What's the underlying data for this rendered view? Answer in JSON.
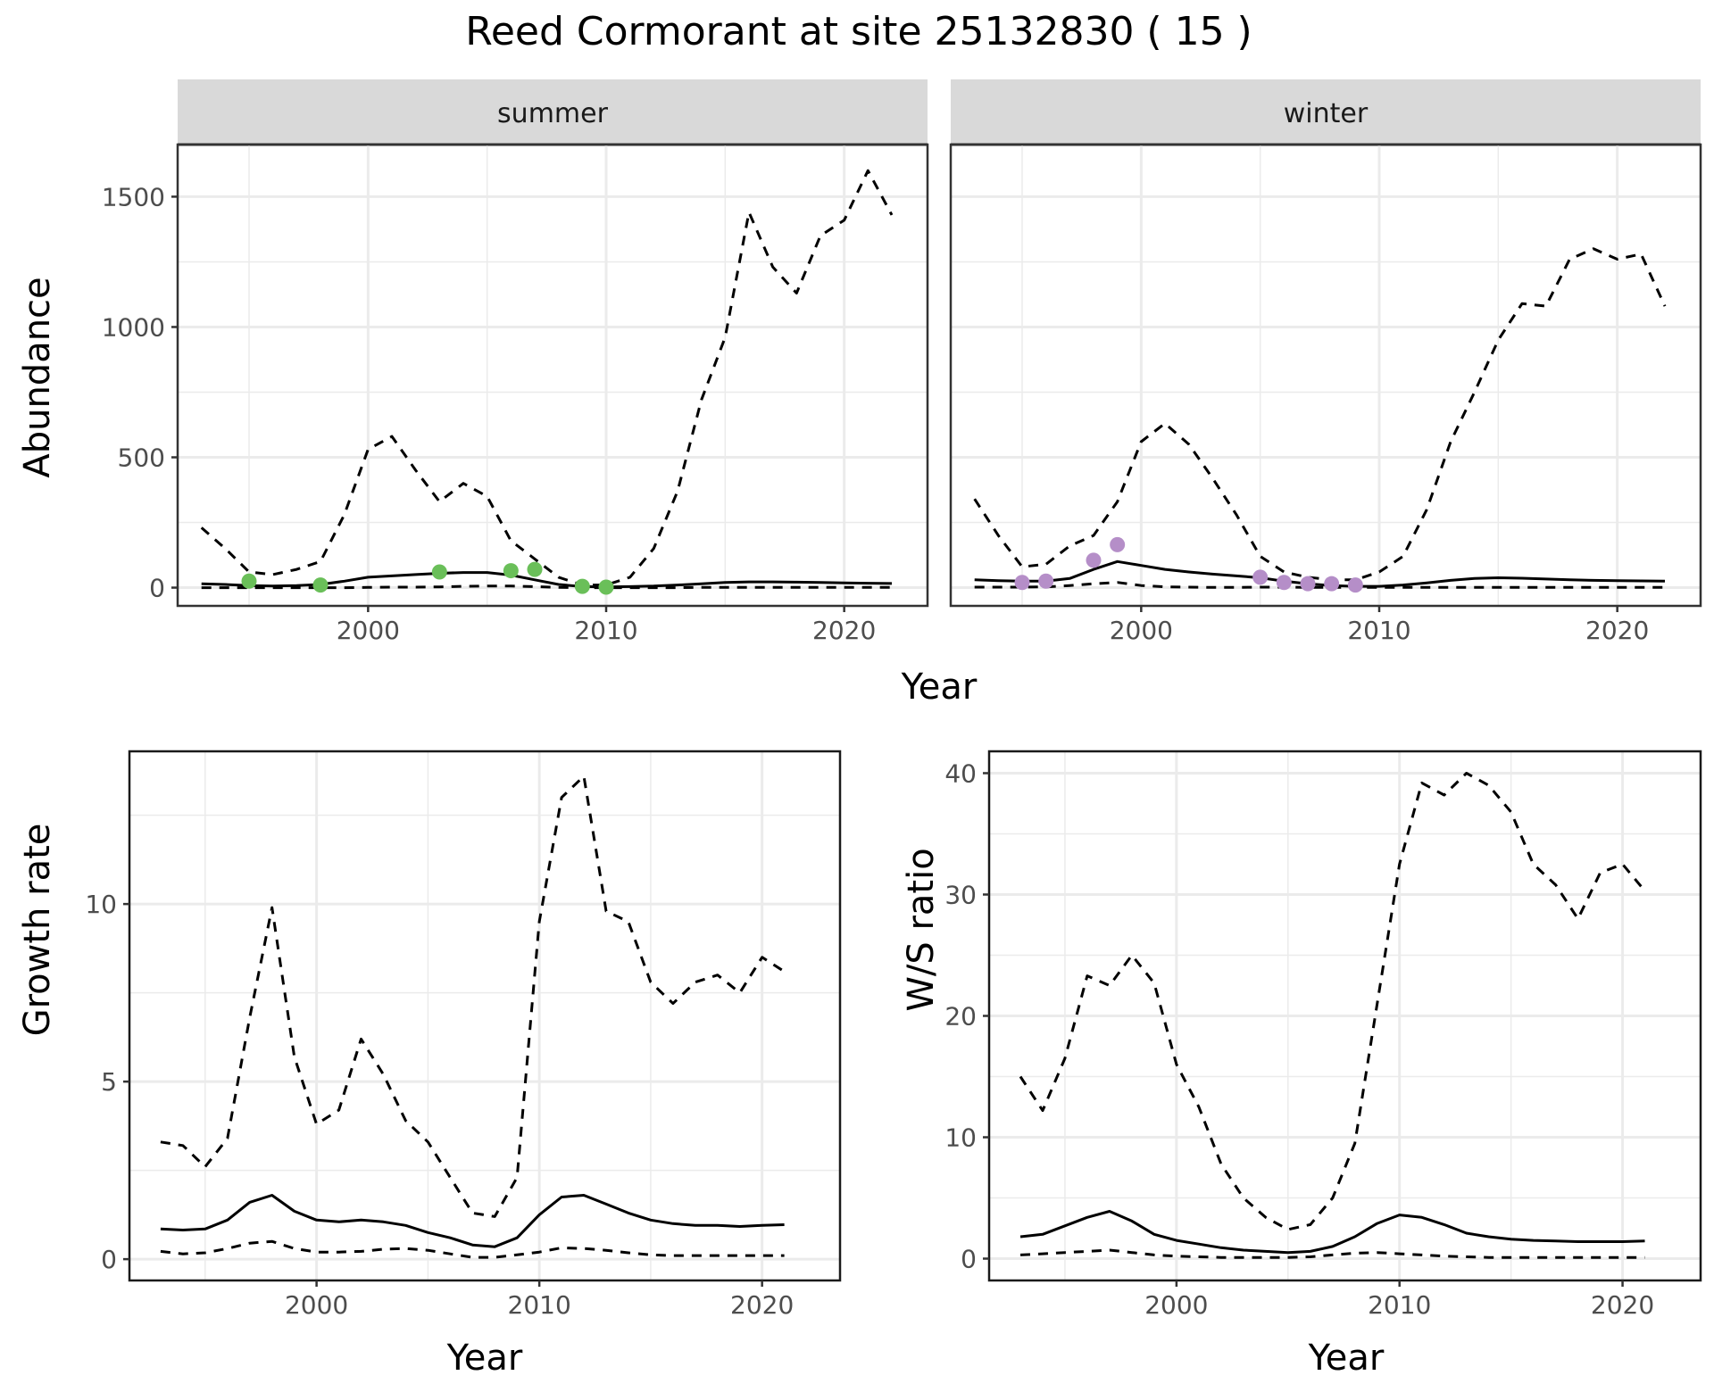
{
  "title": "Reed Cormorant at site 25132830 ( 15 )",
  "colors": {
    "summer_points": "#6abf59",
    "winter_points": "#b58ec8",
    "lines": "#000000",
    "strip_bg": "#d9d9d9",
    "grid": "#ebebeb"
  },
  "chart_data": [
    {
      "type": "line",
      "panel": "summer",
      "xlabel": "Year",
      "ylabel": "Abundance",
      "xlim": [
        1992,
        2023.5
      ],
      "ylim": [
        -70,
        1700
      ],
      "xticks": [
        2000,
        2010,
        2020
      ],
      "yticks": [
        0,
        500,
        1000,
        1500
      ],
      "grid": true,
      "series": [
        {
          "style": "solid",
          "x": [
            1993,
            1994,
            1995,
            1996,
            1997,
            1998,
            1999,
            2000,
            2001,
            2002,
            2003,
            2004,
            2005,
            2006,
            2007,
            2008,
            2009,
            2010,
            2011,
            2012,
            2013,
            2014,
            2015,
            2016,
            2017,
            2018,
            2019,
            2020,
            2021,
            2022
          ],
          "values": [
            15,
            12,
            8,
            6,
            8,
            12,
            25,
            40,
            45,
            50,
            55,
            58,
            58,
            48,
            30,
            12,
            4,
            3,
            4,
            6,
            10,
            15,
            20,
            22,
            22,
            21,
            20,
            18,
            17,
            16
          ]
        },
        {
          "style": "dashed",
          "x": [
            1993,
            1994,
            1995,
            1996,
            1997,
            1998,
            1999,
            2000,
            2001,
            2002,
            2003,
            2004,
            2005,
            2006,
            2007,
            2008,
            2009,
            2010,
            2011,
            2012,
            2013,
            2014,
            2015,
            2016,
            2017,
            2018,
            2019,
            2020,
            2021,
            2022
          ],
          "values": [
            230,
            150,
            60,
            50,
            70,
            100,
            280,
            530,
            580,
            450,
            330,
            400,
            350,
            180,
            110,
            40,
            10,
            10,
            40,
            150,
            370,
            720,
            960,
            1440,
            1230,
            1130,
            1350,
            1410,
            1600,
            1430
          ]
        },
        {
          "style": "dashed",
          "x": [
            1993,
            1994,
            1995,
            1996,
            1997,
            1998,
            1999,
            2000,
            2001,
            2002,
            2003,
            2004,
            2005,
            2006,
            2007,
            2008,
            2009,
            2010,
            2011,
            2012,
            2013,
            2014,
            2015,
            2016,
            2017,
            2018,
            2019,
            2020,
            2021,
            2022
          ],
          "values": [
            0,
            0,
            0,
            0,
            0,
            0,
            0,
            1,
            2,
            2,
            3,
            5,
            6,
            6,
            4,
            1,
            0,
            0,
            0,
            0,
            0,
            1,
            1,
            1,
            1,
            1,
            1,
            1,
            1,
            1
          ]
        }
      ],
      "points": {
        "x": [
          1995,
          1998,
          2003,
          2006,
          2007,
          2009,
          2010
        ],
        "values": [
          25,
          10,
          60,
          65,
          70,
          5,
          2
        ]
      }
    },
    {
      "type": "line",
      "panel": "winter",
      "xlabel": "Year",
      "ylabel": "Abundance",
      "xlim": [
        1992,
        2023.5
      ],
      "ylim": [
        -70,
        1700
      ],
      "xticks": [
        2000,
        2010,
        2020
      ],
      "yticks": [
        0,
        500,
        1000,
        1500
      ],
      "grid": true,
      "series": [
        {
          "style": "solid",
          "x": [
            1993,
            1994,
            1995,
            1996,
            1997,
            1998,
            1999,
            2000,
            2001,
            2002,
            2003,
            2004,
            2005,
            2006,
            2007,
            2008,
            2009,
            2010,
            2011,
            2012,
            2013,
            2014,
            2015,
            2016,
            2017,
            2018,
            2019,
            2020,
            2021,
            2022
          ],
          "values": [
            30,
            27,
            25,
            25,
            35,
            70,
            100,
            85,
            70,
            60,
            52,
            45,
            38,
            25,
            15,
            8,
            5,
            5,
            10,
            18,
            28,
            35,
            38,
            36,
            33,
            30,
            28,
            27,
            26,
            25
          ]
        },
        {
          "style": "dashed",
          "x": [
            1993,
            1994,
            1995,
            1996,
            1997,
            1998,
            1999,
            2000,
            2001,
            2002,
            2003,
            2004,
            2005,
            2006,
            2007,
            2008,
            2009,
            2010,
            2011,
            2012,
            2013,
            2014,
            2015,
            2016,
            2017,
            2018,
            2019,
            2020,
            2021,
            2022
          ],
          "values": [
            340,
            200,
            80,
            90,
            160,
            200,
            330,
            560,
            630,
            550,
            420,
            280,
            120,
            60,
            40,
            30,
            30,
            60,
            120,
            300,
            560,
            750,
            950,
            1090,
            1080,
            1260,
            1300,
            1260,
            1280,
            1080
          ]
        },
        {
          "style": "dashed",
          "x": [
            1993,
            1994,
            1995,
            1996,
            1997,
            1998,
            1999,
            2000,
            2001,
            2002,
            2003,
            2004,
            2005,
            2006,
            2007,
            2008,
            2009,
            2010,
            2011,
            2012,
            2013,
            2014,
            2015,
            2016,
            2017,
            2018,
            2019,
            2020,
            2021,
            2022
          ],
          "values": [
            2,
            2,
            2,
            3,
            8,
            15,
            20,
            8,
            3,
            2,
            1,
            1,
            2,
            2,
            1,
            1,
            1,
            1,
            1,
            1,
            1,
            1,
            1,
            1,
            1,
            1,
            1,
            1,
            1,
            1
          ]
        }
      ],
      "points": {
        "x": [
          1995,
          1996,
          1998,
          1999,
          2005,
          2006,
          2007,
          2008,
          2009
        ],
        "values": [
          20,
          25,
          105,
          165,
          40,
          20,
          15,
          15,
          10
        ]
      }
    },
    {
      "type": "line",
      "xlabel": "Year",
      "ylabel": "Growth rate",
      "xlim": [
        1991.6,
        2023.5
      ],
      "ylim": [
        -0.6,
        14.3
      ],
      "xticks": [
        2000,
        2010,
        2020
      ],
      "yticks": [
        0,
        5,
        10
      ],
      "grid": true,
      "series": [
        {
          "style": "solid",
          "x": [
            1993,
            1994,
            1995,
            1996,
            1997,
            1998,
            1999,
            2000,
            2001,
            2002,
            2003,
            2004,
            2005,
            2006,
            2007,
            2008,
            2009,
            2010,
            2011,
            2012,
            2013,
            2014,
            2015,
            2016,
            2017,
            2018,
            2019,
            2020,
            2021
          ],
          "values": [
            0.85,
            0.82,
            0.85,
            1.1,
            1.6,
            1.8,
            1.35,
            1.1,
            1.05,
            1.1,
            1.05,
            0.95,
            0.75,
            0.6,
            0.4,
            0.35,
            0.6,
            1.25,
            1.75,
            1.8,
            1.55,
            1.3,
            1.1,
            1.0,
            0.95,
            0.95,
            0.92,
            0.95,
            0.97
          ]
        },
        {
          "style": "dashed",
          "x": [
            1993,
            1994,
            1995,
            1996,
            1997,
            1998,
            1999,
            2000,
            2001,
            2002,
            2003,
            2004,
            2005,
            2006,
            2007,
            2008,
            2009,
            2010,
            2011,
            2012,
            2013,
            2014,
            2015,
            2016,
            2017,
            2018,
            2019,
            2020,
            2021
          ],
          "values": [
            3.3,
            3.2,
            2.6,
            3.4,
            6.8,
            9.9,
            5.7,
            3.8,
            4.2,
            6.2,
            5.2,
            3.9,
            3.3,
            2.3,
            1.3,
            1.2,
            2.3,
            9.5,
            13.0,
            13.6,
            9.8,
            9.5,
            7.8,
            7.2,
            7.8,
            8.0,
            7.5,
            8.5,
            8.1
          ]
        },
        {
          "style": "dashed",
          "x": [
            1993,
            1994,
            1995,
            1996,
            1997,
            1998,
            1999,
            2000,
            2001,
            2002,
            2003,
            2004,
            2005,
            2006,
            2007,
            2008,
            2009,
            2010,
            2011,
            2012,
            2013,
            2014,
            2015,
            2016,
            2017,
            2018,
            2019,
            2020,
            2021
          ],
          "values": [
            0.22,
            0.15,
            0.18,
            0.3,
            0.45,
            0.5,
            0.3,
            0.2,
            0.2,
            0.22,
            0.28,
            0.3,
            0.25,
            0.15,
            0.05,
            0.05,
            0.12,
            0.2,
            0.32,
            0.3,
            0.25,
            0.18,
            0.12,
            0.1,
            0.1,
            0.1,
            0.1,
            0.1,
            0.1
          ]
        }
      ]
    },
    {
      "type": "line",
      "xlabel": "Year",
      "ylabel": "W/S ratio",
      "xlim": [
        1991.6,
        2023.5
      ],
      "ylim": [
        -1.8,
        41.8
      ],
      "xticks": [
        2000,
        2010,
        2020
      ],
      "yticks": [
        0,
        10,
        20,
        30,
        40
      ],
      "grid": true,
      "series": [
        {
          "style": "solid",
          "x": [
            1993,
            1994,
            1995,
            1996,
            1997,
            1998,
            1999,
            2000,
            2001,
            2002,
            2003,
            2004,
            2005,
            2006,
            2007,
            2008,
            2009,
            2010,
            2011,
            2012,
            2013,
            2014,
            2015,
            2016,
            2017,
            2018,
            2019,
            2020,
            2021
          ],
          "values": [
            1.8,
            2.0,
            2.7,
            3.4,
            3.9,
            3.1,
            2.0,
            1.5,
            1.2,
            0.9,
            0.7,
            0.6,
            0.5,
            0.6,
            1.0,
            1.8,
            2.9,
            3.6,
            3.4,
            2.8,
            2.1,
            1.8,
            1.6,
            1.5,
            1.45,
            1.4,
            1.4,
            1.4,
            1.45
          ]
        },
        {
          "style": "dashed",
          "x": [
            1993,
            1994,
            1995,
            1996,
            1997,
            1998,
            1999,
            2000,
            2001,
            2002,
            2003,
            2004,
            2005,
            2006,
            2007,
            2008,
            2009,
            2010,
            2011,
            2012,
            2013,
            2014,
            2015,
            2016,
            2017,
            2018,
            2019,
            2020,
            2021
          ],
          "values": [
            15.0,
            12.2,
            16.5,
            23.3,
            22.5,
            25.0,
            22.7,
            16.0,
            12.5,
            7.8,
            5.0,
            3.4,
            2.4,
            2.8,
            5.0,
            9.5,
            21.0,
            32.5,
            39.2,
            38.2,
            40.0,
            39.0,
            36.8,
            32.5,
            30.8,
            28.0,
            31.8,
            32.5,
            30.3
          ]
        },
        {
          "style": "dashed",
          "x": [
            1993,
            1994,
            1995,
            1996,
            1997,
            1998,
            1999,
            2000,
            2001,
            2002,
            2003,
            2004,
            2005,
            2006,
            2007,
            2008,
            2009,
            2010,
            2011,
            2012,
            2013,
            2014,
            2015,
            2016,
            2017,
            2018,
            2019,
            2020,
            2021
          ],
          "values": [
            0.3,
            0.4,
            0.5,
            0.6,
            0.7,
            0.5,
            0.3,
            0.2,
            0.15,
            0.1,
            0.1,
            0.1,
            0.1,
            0.15,
            0.3,
            0.45,
            0.5,
            0.4,
            0.3,
            0.2,
            0.15,
            0.1,
            0.1,
            0.1,
            0.1,
            0.1,
            0.1,
            0.1,
            0.1
          ]
        }
      ]
    }
  ]
}
